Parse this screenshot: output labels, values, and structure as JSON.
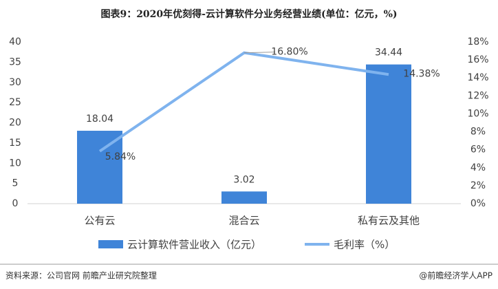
{
  "chart_data": {
    "type": "bar-line",
    "title": "图表9：2020年优刻得-云计算软件分业务经营业绩(单位：亿元，%)",
    "categories": [
      "公有云",
      "混合云",
      "私有云及其他"
    ],
    "series": [
      {
        "name": "云计算软件营业收入（亿元）",
        "type": "bar",
        "color": "#3f84d8",
        "values": [
          18.04,
          3.02,
          34.44
        ]
      },
      {
        "name": "毛利率（%）",
        "type": "line",
        "axis": "y2",
        "color": "#7fb3ee",
        "values": [
          5.84,
          16.8,
          14.38
        ],
        "value_labels": [
          "5.84%",
          "16.80%",
          "14.38%"
        ]
      }
    ],
    "ylim": [
      0,
      40
    ],
    "yticks": [
      0,
      5,
      10,
      15,
      20,
      25,
      30,
      35,
      40
    ],
    "y2lim": [
      0,
      18
    ],
    "y2ticks": [
      {
        "value": 0,
        "label": "0%"
      },
      {
        "value": 2,
        "label": "2%"
      },
      {
        "value": 4,
        "label": "4%"
      },
      {
        "value": 6,
        "label": "6%"
      },
      {
        "value": 8,
        "label": "8%"
      },
      {
        "value": 10,
        "label": "10%"
      },
      {
        "value": 12,
        "label": "12%"
      },
      {
        "value": 14,
        "label": "14%"
      },
      {
        "value": 16,
        "label": "16%"
      },
      {
        "value": 18,
        "label": "18%"
      }
    ],
    "grid": false,
    "legend": "bottom",
    "source": "资料来源：公司官网 前瞻产业研究院整理",
    "credit": "@前瞻经济学人APP"
  }
}
